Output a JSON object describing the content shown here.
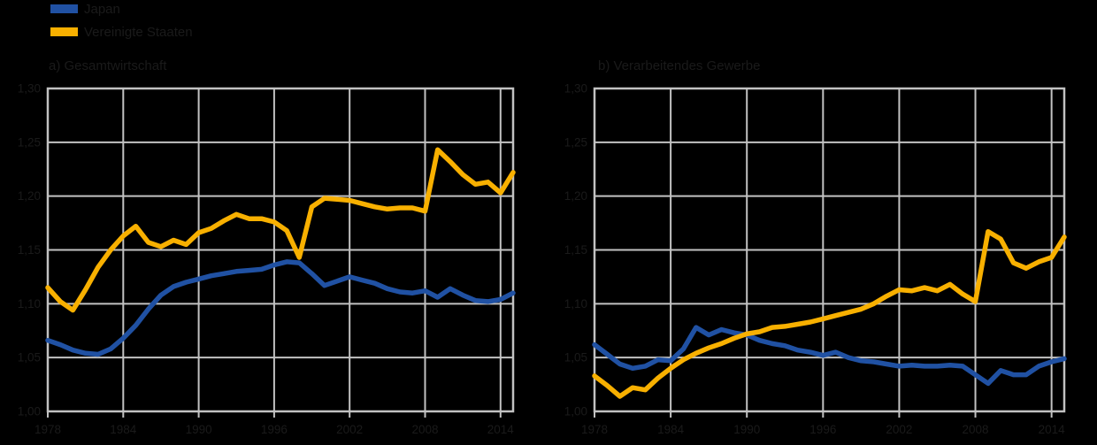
{
  "legend": {
    "items": [
      {
        "label": "Japan",
        "color": "#2051a3"
      },
      {
        "label": "Vereinigte Staaten",
        "color": "#f8b000"
      }
    ]
  },
  "colors": {
    "background": "#000000",
    "grid": "#c2c2c2",
    "text": "#1a1a1a",
    "japan_line": "#2051a3",
    "usa_line": "#f8b000"
  },
  "chart_data": [
    {
      "type": "line",
      "title": "a) Gesamtwirtschaft",
      "xlim": [
        1978,
        2015
      ],
      "ylim": [
        1.0,
        1.3
      ],
      "grid": true,
      "legend_position": "top-left",
      "x_tick_values": [
        1978,
        1984,
        1990,
        1996,
        2002,
        2008,
        2014
      ],
      "x_tick_labels": [
        "1978",
        "1984",
        "1990",
        "1996",
        "2002",
        "2008",
        "2014"
      ],
      "y_tick_values": [
        1.0,
        1.05,
        1.1,
        1.15,
        1.2,
        1.25,
        1.3
      ],
      "y_tick_labels": [
        "1,00",
        "1,05",
        "1,10",
        "1,15",
        "1,20",
        "1,25",
        "1,30"
      ],
      "x": [
        1978,
        1979,
        1980,
        1981,
        1982,
        1983,
        1984,
        1985,
        1986,
        1987,
        1988,
        1989,
        1990,
        1991,
        1992,
        1993,
        1994,
        1995,
        1996,
        1997,
        1998,
        1999,
        2000,
        2001,
        2002,
        2003,
        2004,
        2005,
        2006,
        2007,
        2008,
        2009,
        2010,
        2011,
        2012,
        2013,
        2014,
        2015
      ],
      "series": [
        {
          "name": "Japan",
          "color": "#2051a3",
          "values": [
            1.066,
            1.062,
            1.057,
            1.054,
            1.053,
            1.058,
            1.068,
            1.08,
            1.095,
            1.108,
            1.116,
            1.12,
            1.123,
            1.126,
            1.128,
            1.13,
            1.131,
            1.132,
            1.136,
            1.139,
            1.138,
            1.128,
            1.117,
            1.121,
            1.125,
            1.122,
            1.119,
            1.114,
            1.111,
            1.11,
            1.112,
            1.106,
            1.114,
            1.108,
            1.103,
            1.102,
            1.104,
            1.11
          ]
        },
        {
          "name": "Vereinigte Staaten",
          "color": "#f8b000",
          "values": [
            1.115,
            1.102,
            1.094,
            1.113,
            1.134,
            1.15,
            1.163,
            1.172,
            1.157,
            1.153,
            1.159,
            1.155,
            1.166,
            1.17,
            1.177,
            1.183,
            1.179,
            1.179,
            1.176,
            1.168,
            1.143,
            1.19,
            1.198,
            1.197,
            1.196,
            1.193,
            1.19,
            1.188,
            1.189,
            1.189,
            1.186,
            1.243,
            1.232,
            1.22,
            1.211,
            1.213,
            1.203,
            1.222
          ]
        }
      ]
    },
    {
      "type": "line",
      "title": "b) Verarbeitendes Gewerbe",
      "xlim": [
        1978,
        2015
      ],
      "ylim": [
        1.0,
        1.3
      ],
      "grid": true,
      "legend_position": "shared-top-left",
      "x_tick_values": [
        1978,
        1984,
        1990,
        1996,
        2002,
        2008,
        2014
      ],
      "x_tick_labels": [
        "1978",
        "1984",
        "1990",
        "1996",
        "2002",
        "2008",
        "2014"
      ],
      "y_tick_values": [
        1.0,
        1.05,
        1.1,
        1.15,
        1.2,
        1.25,
        1.3
      ],
      "y_tick_labels": [
        "1,00",
        "1,05",
        "1,10",
        "1,15",
        "1,20",
        "1,25",
        "1,30"
      ],
      "x": [
        1978,
        1979,
        1980,
        1981,
        1982,
        1983,
        1984,
        1985,
        1986,
        1987,
        1988,
        1989,
        1990,
        1991,
        1992,
        1993,
        1994,
        1995,
        1996,
        1997,
        1998,
        1999,
        2000,
        2001,
        2002,
        2003,
        2004,
        2005,
        2006,
        2007,
        2008,
        2009,
        2010,
        2011,
        2012,
        2013,
        2014,
        2015
      ],
      "series": [
        {
          "name": "Japan",
          "color": "#2051a3",
          "values": [
            1.062,
            1.053,
            1.044,
            1.04,
            1.042,
            1.048,
            1.047,
            1.058,
            1.078,
            1.071,
            1.076,
            1.073,
            1.071,
            1.066,
            1.063,
            1.061,
            1.057,
            1.055,
            1.052,
            1.055,
            1.05,
            1.047,
            1.046,
            1.044,
            1.042,
            1.043,
            1.042,
            1.042,
            1.043,
            1.042,
            1.034,
            1.026,
            1.038,
            1.034,
            1.034,
            1.042,
            1.046,
            1.049
          ]
        },
        {
          "name": "Vereinigte Staaten",
          "color": "#f8b000",
          "values": [
            1.033,
            1.024,
            1.014,
            1.022,
            1.02,
            1.031,
            1.04,
            1.048,
            1.054,
            1.059,
            1.063,
            1.068,
            1.072,
            1.074,
            1.078,
            1.079,
            1.081,
            1.083,
            1.086,
            1.089,
            1.092,
            1.095,
            1.1,
            1.107,
            1.113,
            1.112,
            1.115,
            1.112,
            1.118,
            1.109,
            1.102,
            1.167,
            1.16,
            1.138,
            1.133,
            1.139,
            1.143,
            1.162
          ]
        }
      ]
    }
  ]
}
